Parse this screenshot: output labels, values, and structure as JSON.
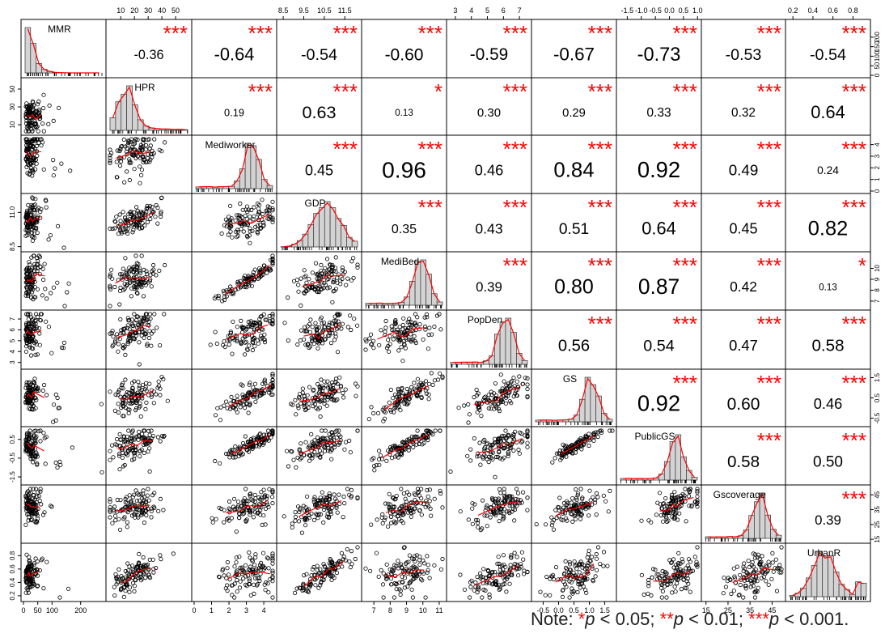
{
  "chart_data": {
    "type": "scatter",
    "variables": [
      "MMR",
      "HPR",
      "Mediworker",
      "GDP",
      "MediBed",
      "PopDen",
      "GS",
      "PublicGS",
      "Gscoverage",
      "UrbanR"
    ],
    "correlations": [
      [
        null,
        "-0.36",
        "-0.64",
        "-0.54",
        "-0.60",
        "-0.59",
        "-0.67",
        "-0.73",
        "-0.53",
        "-0.54"
      ],
      [
        null,
        null,
        "0.19",
        "0.63",
        "0.13",
        "0.30",
        "0.29",
        "0.33",
        "0.32",
        "0.64"
      ],
      [
        null,
        null,
        null,
        "0.45",
        "0.96",
        "0.46",
        "0.84",
        "0.92",
        "0.49",
        "0.24"
      ],
      [
        null,
        null,
        null,
        null,
        "0.35",
        "0.43",
        "0.51",
        "0.64",
        "0.45",
        "0.82"
      ],
      [
        null,
        null,
        null,
        null,
        null,
        "0.39",
        "0.80",
        "0.87",
        "0.42",
        "0.13"
      ],
      [
        null,
        null,
        null,
        null,
        null,
        null,
        "0.56",
        "0.54",
        "0.47",
        "0.58"
      ],
      [
        null,
        null,
        null,
        null,
        null,
        null,
        null,
        "0.92",
        "0.60",
        "0.46"
      ],
      [
        null,
        null,
        null,
        null,
        null,
        null,
        null,
        null,
        "0.58",
        "0.50"
      ],
      [
        null,
        null,
        null,
        null,
        null,
        null,
        null,
        null,
        null,
        "0.39"
      ]
    ],
    "significance": [
      [
        null,
        "***",
        "***",
        "***",
        "***",
        "***",
        "***",
        "***",
        "***",
        "***"
      ],
      [
        null,
        null,
        "***",
        "***",
        "*",
        "***",
        "***",
        "***",
        "***",
        "***"
      ],
      [
        null,
        null,
        null,
        "***",
        "***",
        "***",
        "***",
        "***",
        "***",
        "***"
      ],
      [
        null,
        null,
        null,
        null,
        "***",
        "***",
        "***",
        "***",
        "***",
        "***"
      ],
      [
        null,
        null,
        null,
        null,
        null,
        "***",
        "***",
        "***",
        "***",
        "*"
      ],
      [
        null,
        null,
        null,
        null,
        null,
        null,
        "***",
        "***",
        "***",
        "***"
      ],
      [
        null,
        null,
        null,
        null,
        null,
        null,
        null,
        "***",
        "***",
        "***"
      ],
      [
        null,
        null,
        null,
        null,
        null,
        null,
        null,
        null,
        "***",
        "***"
      ],
      [
        null,
        null,
        null,
        null,
        null,
        null,
        null,
        null,
        null,
        "***"
      ]
    ],
    "axis_ranges": [
      [
        0,
        280
      ],
      [
        1,
        60
      ],
      [
        0,
        4.6
      ],
      [
        8.3,
        12.2
      ],
      [
        6.4,
        11.3
      ],
      [
        2.6,
        7.6
      ],
      [
        -0.8,
        1.8
      ],
      [
        -1.8,
        1.05
      ],
      [
        14,
        50
      ],
      [
        0.15,
        0.95
      ]
    ],
    "ticks": {
      "MMR": {
        "side": "bottom",
        "labels": [
          "0",
          "50",
          "100",
          "200"
        ],
        "values": [
          0,
          50,
          100,
          200
        ]
      },
      "HPR": {
        "side": "top",
        "labels": [
          "10",
          "20",
          "30",
          "40",
          "50"
        ],
        "values": [
          10,
          20,
          30,
          40,
          50
        ]
      },
      "Mediworker": {
        "side": "bottom",
        "labels": [
          "0",
          "1",
          "2",
          "3",
          "4"
        ],
        "values": [
          0,
          1,
          2,
          3,
          4
        ]
      },
      "GDP": {
        "side": "top",
        "labels": [
          "8.5",
          "9.5",
          "10.5",
          "11.5"
        ],
        "values": [
          8.5,
          9.5,
          10.5,
          11.5
        ]
      },
      "MediBed": {
        "side": "bottom",
        "labels": [
          "7",
          "8",
          "9",
          "10",
          "11"
        ],
        "values": [
          7,
          8,
          9,
          10,
          11
        ]
      },
      "PopDen": {
        "side": "top",
        "labels": [
          "3",
          "4",
          "5",
          "6",
          "7"
        ],
        "values": [
          3,
          4,
          5,
          6,
          7
        ]
      },
      "GS": {
        "side": "bottom",
        "labels": [
          "-0.5",
          "0.0",
          "0.5",
          "1.0",
          "1.5"
        ],
        "values": [
          -0.5,
          0,
          0.5,
          1,
          1.5
        ]
      },
      "PublicGS": {
        "side": "top",
        "labels": [
          "-1.5",
          "-1.0",
          "-0.5",
          "0.0",
          "0.5",
          "1.0"
        ],
        "values": [
          -1.5,
          -1,
          -0.5,
          0,
          0.5,
          1
        ]
      },
      "Gscoverage": {
        "side": "bottom",
        "labels": [
          "15",
          "25",
          "35",
          "45"
        ],
        "values": [
          15,
          25,
          35,
          45
        ]
      },
      "UrbanR": {
        "side": "top",
        "labels": [
          "0.2",
          "0.4",
          "0.6",
          "0.8"
        ],
        "values": [
          0.2,
          0.4,
          0.6,
          0.8
        ]
      }
    },
    "left_ticks": {
      "HPR": {
        "labels": [
          "10",
          "30",
          "50"
        ],
        "values": [
          10,
          30,
          50
        ]
      },
      "GDP": {
        "labels": [
          "8.5",
          "11.0"
        ],
        "values": [
          8.5,
          11.0
        ]
      },
      "PopDen": {
        "labels": [
          "3",
          "4",
          "5",
          "6",
          "7"
        ],
        "values": [
          3,
          4,
          5,
          6,
          7
        ]
      },
      "PublicGS": {
        "labels": [
          "-1.5",
          "-0.5",
          "0.5"
        ],
        "values": [
          -1.5,
          -0.5,
          0.5
        ]
      },
      "UrbanR": {
        "labels": [
          "0.2",
          "0.4",
          "0.6",
          "0.8"
        ],
        "values": [
          0.2,
          0.4,
          0.6,
          0.8
        ]
      }
    },
    "right_ticks": {
      "MMR": {
        "labels": [
          "0",
          "50",
          "100",
          "150",
          "200"
        ],
        "values": [
          0,
          50,
          100,
          150,
          200
        ]
      },
      "Mediworker": {
        "labels": [
          "0",
          "1",
          "2",
          "3",
          "4"
        ],
        "values": [
          0,
          1,
          2,
          3,
          4
        ]
      },
      "MediBed": {
        "labels": [
          "7",
          "8",
          "9",
          "10"
        ],
        "values": [
          7,
          8,
          9,
          10
        ]
      },
      "GS": {
        "labels": [
          "-0.5",
          "0.5",
          "1.5"
        ],
        "values": [
          -0.5,
          0.5,
          1.5
        ]
      },
      "Gscoverage": {
        "labels": [
          "15",
          "25",
          "35",
          "45"
        ],
        "values": [
          15,
          25,
          35,
          45
        ]
      }
    },
    "colors": {
      "smooth_line": "#ff0000",
      "stars": "#ff0000",
      "histogram_fill": "#d3d3d3",
      "points": "#000000"
    }
  },
  "note": {
    "prefix": "Note: ",
    "s1": "*",
    "t1": "p",
    "r1": " < 0.05; ",
    "s2": "**",
    "t2": "p",
    "r2": " < 0.01; ",
    "s3": "***",
    "t3": "p",
    "r3": " < 0.001."
  }
}
